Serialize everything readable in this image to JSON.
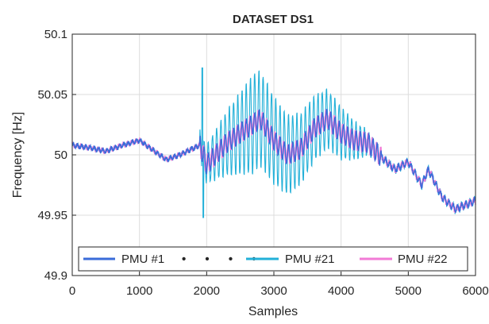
{
  "chart_data": {
    "type": "line",
    "title": "DATASET DS1",
    "xlabel": "Samples",
    "ylabel": "Frequency [Hz]",
    "xlim": [
      0,
      6000
    ],
    "ylim": [
      49.9,
      50.1
    ],
    "x_ticks": [
      0,
      1000,
      2000,
      3000,
      4000,
      5000,
      6000
    ],
    "x_tick_labels": [
      "0",
      "1000",
      "2000",
      "3000",
      "4000",
      "5000",
      "6000"
    ],
    "y_ticks": [
      49.9,
      49.95,
      50,
      50.05,
      50.1
    ],
    "y_tick_labels": [
      "49.9",
      "49.95",
      "50",
      "50.05",
      "50.1"
    ],
    "grid": true,
    "legend_position": "bottom",
    "legend_dots": "• • • •",
    "series": [
      {
        "name": "PMU #1",
        "color": "#3a6bd9",
        "oscillating": false,
        "x": [
          0,
          250,
          500,
          750,
          1000,
          1200,
          1400,
          1600,
          1900,
          2000,
          2300,
          2600,
          2800,
          3000,
          3200,
          3400,
          3600,
          3800,
          4000,
          4200,
          4400,
          4600,
          4800,
          5000,
          5200,
          5300,
          5500,
          5700,
          6000
        ],
        "y": [
          50.008,
          50.006,
          50.003,
          50.008,
          50.012,
          50.004,
          49.996,
          50.0,
          50.008,
          49.992,
          50.01,
          50.022,
          50.03,
          50.012,
          50.0,
          50.005,
          50.022,
          50.03,
          50.018,
          50.012,
          50.01,
          49.998,
          49.988,
          49.994,
          49.975,
          49.988,
          49.965,
          49.955,
          49.962
        ]
      },
      {
        "name": "PMU #21",
        "color": "#22b0d8",
        "oscillating": true,
        "x": [
          0,
          250,
          500,
          750,
          1000,
          1200,
          1400,
          1600,
          1900,
          2000,
          2300,
          2600,
          2800,
          3000,
          3200,
          3400,
          3600,
          3800,
          4000,
          4200,
          4400,
          4600,
          4800,
          5000,
          5200,
          5300,
          5500,
          5700,
          6000
        ],
        "y": [
          50.008,
          50.006,
          50.003,
          50.008,
          50.012,
          50.004,
          49.996,
          50.0,
          50.008,
          49.992,
          50.01,
          50.022,
          50.03,
          50.012,
          50.0,
          50.005,
          50.022,
          50.03,
          50.018,
          50.012,
          50.01,
          49.998,
          49.988,
          49.994,
          49.975,
          49.988,
          49.965,
          49.955,
          49.962
        ]
      },
      {
        "name": "PMU #22",
        "color": "#f27ad6",
        "oscillating": false,
        "x": [
          0,
          250,
          500,
          750,
          1000,
          1200,
          1400,
          1600,
          1900,
          2000,
          2300,
          2600,
          2800,
          3000,
          3200,
          3400,
          3600,
          3800,
          4000,
          4200,
          4400,
          4600,
          4800,
          5000,
          5200,
          5300,
          5500,
          5700,
          6000
        ],
        "y": [
          50.008,
          50.006,
          50.003,
          50.008,
          50.012,
          50.004,
          49.996,
          50.0,
          50.008,
          49.992,
          50.01,
          50.022,
          50.03,
          50.012,
          50.0,
          50.005,
          50.022,
          50.03,
          50.018,
          50.012,
          50.01,
          49.998,
          49.988,
          49.994,
          49.975,
          49.988,
          49.965,
          49.955,
          49.962
        ]
      }
    ]
  }
}
